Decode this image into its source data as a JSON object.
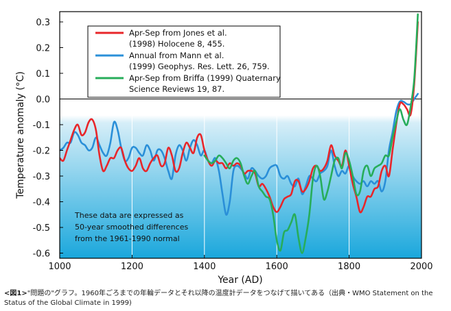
{
  "chart_data": {
    "type": "line",
    "xlabel": "Year (AD)",
    "ylabel": "Temperature anomaly (°C)",
    "xlim": [
      1000,
      2000
    ],
    "ylim": [
      -0.62,
      0.34
    ],
    "x_ticks": [
      1000,
      1200,
      1400,
      1600,
      1800,
      2000
    ],
    "y_ticks": [
      0.3,
      0.2,
      0.1,
      0.0,
      -0.1,
      -0.2,
      -0.3,
      -0.4,
      -0.5,
      -0.6
    ],
    "x_tick_labels": [
      "1000",
      "1200",
      "1400",
      "1600",
      "1800",
      "2000"
    ],
    "y_tick_labels": [
      "0.3",
      "0.2",
      "0.1",
      "0.0",
      "-0.1",
      "-0.2",
      "-0.3",
      "-0.4",
      "-0.5",
      "-0.6"
    ],
    "legend": [
      {
        "lines": [
          "Apr-Sep from Jones et al.",
          "(1998) Holocene 8, 455."
        ],
        "color": "#e8262a"
      },
      {
        "lines": [
          "Annual from Mann et al.",
          "(1999) Geophys. Res. Lett. 26, 759."
        ],
        "color": "#2a8fd8"
      },
      {
        "lines": [
          "Apr-Sep from Briffa (1999) Quaternary",
          "Science Reviews 19, 87."
        ],
        "color": "#27ad5a"
      }
    ],
    "annotation": [
      "These data are expressed as",
      "50-year smoothed differences",
      "from the 1961-1990 normal"
    ],
    "series": [
      {
        "color": "#e8262a",
        "x": [
          1000,
          1010,
          1020,
          1030,
          1040,
          1050,
          1060,
          1070,
          1080,
          1090,
          1100,
          1110,
          1120,
          1130,
          1140,
          1150,
          1160,
          1170,
          1180,
          1190,
          1200,
          1210,
          1220,
          1230,
          1240,
          1250,
          1260,
          1270,
          1280,
          1290,
          1300,
          1310,
          1320,
          1330,
          1340,
          1350,
          1360,
          1370,
          1380,
          1390,
          1400,
          1410,
          1420,
          1430,
          1440,
          1450,
          1460,
          1470,
          1480,
          1490,
          1500,
          1510,
          1520,
          1530,
          1540,
          1550,
          1560,
          1570,
          1580,
          1590,
          1600,
          1610,
          1620,
          1630,
          1640,
          1650,
          1660,
          1670,
          1680,
          1690,
          1700,
          1710,
          1720,
          1730,
          1740,
          1750,
          1760,
          1770,
          1780,
          1790,
          1800,
          1810,
          1820,
          1830,
          1840,
          1850,
          1860,
          1870,
          1880,
          1890,
          1900,
          1910,
          1920,
          1930,
          1940,
          1950,
          1960,
          1970,
          1980,
          1990
        ],
        "y": [
          -0.23,
          -0.24,
          -0.2,
          -0.16,
          -0.12,
          -0.1,
          -0.14,
          -0.13,
          -0.09,
          -0.08,
          -0.12,
          -0.22,
          -0.28,
          -0.26,
          -0.23,
          -0.23,
          -0.2,
          -0.19,
          -0.24,
          -0.27,
          -0.28,
          -0.26,
          -0.23,
          -0.27,
          -0.28,
          -0.25,
          -0.23,
          -0.22,
          -0.26,
          -0.25,
          -0.19,
          -0.22,
          -0.28,
          -0.27,
          -0.21,
          -0.17,
          -0.19,
          -0.21,
          -0.15,
          -0.14,
          -0.2,
          -0.24,
          -0.26,
          -0.24,
          -0.25,
          -0.25,
          -0.27,
          -0.25,
          -0.26,
          -0.25,
          -0.26,
          -0.29,
          -0.28,
          -0.28,
          -0.29,
          -0.34,
          -0.33,
          -0.35,
          -0.38,
          -0.42,
          -0.44,
          -0.42,
          -0.39,
          -0.38,
          -0.37,
          -0.32,
          -0.32,
          -0.36,
          -0.35,
          -0.32,
          -0.27,
          -0.26,
          -0.28,
          -0.27,
          -0.24,
          -0.18,
          -0.22,
          -0.24,
          -0.26,
          -0.2,
          -0.26,
          -0.33,
          -0.38,
          -0.44,
          -0.42,
          -0.38,
          -0.38,
          -0.35,
          -0.34,
          -0.28,
          -0.26,
          -0.3,
          -0.2,
          -0.1,
          -0.02,
          -0.02,
          -0.04,
          -0.06,
          0.06,
          0.3
        ]
      },
      {
        "color": "#2a8fd8",
        "x": [
          1000,
          1010,
          1020,
          1030,
          1040,
          1050,
          1060,
          1070,
          1080,
          1090,
          1100,
          1110,
          1120,
          1130,
          1140,
          1150,
          1160,
          1170,
          1180,
          1190,
          1200,
          1210,
          1220,
          1230,
          1240,
          1250,
          1260,
          1270,
          1280,
          1290,
          1300,
          1310,
          1320,
          1330,
          1340,
          1350,
          1360,
          1370,
          1380,
          1390,
          1400,
          1410,
          1420,
          1430,
          1440,
          1450,
          1460,
          1470,
          1480,
          1490,
          1500,
          1510,
          1520,
          1530,
          1540,
          1550,
          1560,
          1570,
          1580,
          1590,
          1600,
          1610,
          1620,
          1630,
          1640,
          1650,
          1660,
          1670,
          1680,
          1690,
          1700,
          1710,
          1720,
          1730,
          1740,
          1750,
          1760,
          1770,
          1780,
          1790,
          1800,
          1810,
          1820,
          1830,
          1840,
          1850,
          1860,
          1870,
          1880,
          1890,
          1900,
          1910,
          1920,
          1930,
          1940,
          1950,
          1960,
          1970,
          1980,
          1990
        ],
        "y": [
          -0.2,
          -0.19,
          -0.17,
          -0.17,
          -0.13,
          -0.14,
          -0.17,
          -0.18,
          -0.2,
          -0.19,
          -0.15,
          -0.18,
          -0.21,
          -0.22,
          -0.17,
          -0.09,
          -0.12,
          -0.19,
          -0.24,
          -0.23,
          -0.19,
          -0.19,
          -0.21,
          -0.22,
          -0.18,
          -0.2,
          -0.24,
          -0.2,
          -0.2,
          -0.23,
          -0.28,
          -0.31,
          -0.22,
          -0.18,
          -0.2,
          -0.24,
          -0.19,
          -0.16,
          -0.18,
          -0.22,
          -0.2,
          -0.24,
          -0.25,
          -0.23,
          -0.28,
          -0.37,
          -0.45,
          -0.4,
          -0.28,
          -0.26,
          -0.27,
          -0.29,
          -0.31,
          -0.27,
          -0.28,
          -0.3,
          -0.31,
          -0.3,
          -0.27,
          -0.26,
          -0.26,
          -0.3,
          -0.31,
          -0.3,
          -0.33,
          -0.34,
          -0.31,
          -0.37,
          -0.34,
          -0.3,
          -0.31,
          -0.32,
          -0.29,
          -0.28,
          -0.26,
          -0.2,
          -0.26,
          -0.3,
          -0.28,
          -0.29,
          -0.26,
          -0.3,
          -0.32,
          -0.33,
          -0.32,
          -0.34,
          -0.32,
          -0.33,
          -0.32,
          -0.36,
          -0.32,
          -0.2,
          -0.13,
          -0.05,
          -0.01,
          -0.01,
          -0.02,
          -0.02,
          0.0,
          0.02
        ]
      },
      {
        "color": "#27ad5a",
        "x": [
          1400,
          1410,
          1420,
          1430,
          1440,
          1450,
          1460,
          1470,
          1480,
          1490,
          1500,
          1510,
          1520,
          1530,
          1540,
          1550,
          1560,
          1570,
          1580,
          1590,
          1600,
          1610,
          1620,
          1630,
          1640,
          1650,
          1660,
          1670,
          1680,
          1690,
          1700,
          1710,
          1720,
          1730,
          1740,
          1750,
          1760,
          1770,
          1780,
          1790,
          1800,
          1810,
          1820,
          1830,
          1840,
          1850,
          1860,
          1870,
          1880,
          1890,
          1900,
          1910,
          1920,
          1930,
          1940,
          1950,
          1960,
          1970,
          1980,
          1990
        ],
        "y": [
          -0.22,
          -0.24,
          -0.25,
          -0.24,
          -0.22,
          -0.23,
          -0.25,
          -0.27,
          -0.24,
          -0.23,
          -0.25,
          -0.3,
          -0.33,
          -0.3,
          -0.28,
          -0.34,
          -0.36,
          -0.38,
          -0.39,
          -0.45,
          -0.55,
          -0.59,
          -0.52,
          -0.51,
          -0.48,
          -0.45,
          -0.54,
          -0.6,
          -0.54,
          -0.45,
          -0.31,
          -0.26,
          -0.3,
          -0.39,
          -0.36,
          -0.3,
          -0.24,
          -0.23,
          -0.27,
          -0.21,
          -0.24,
          -0.3,
          -0.37,
          -0.36,
          -0.28,
          -0.26,
          -0.3,
          -0.27,
          -0.26,
          -0.25,
          -0.22,
          -0.22,
          -0.15,
          -0.09,
          -0.04,
          -0.08,
          -0.1,
          -0.03,
          0.08,
          0.33
        ]
      }
    ]
  },
  "caption": {
    "bold": "<図1>",
    "text": "\"問題の\"グラフ。1960年ごろまでの年輪データとそれ以降の温度計データをつなげて描いてある（出典・WMO Statement on the Status of the Global Climate in 1999)"
  }
}
